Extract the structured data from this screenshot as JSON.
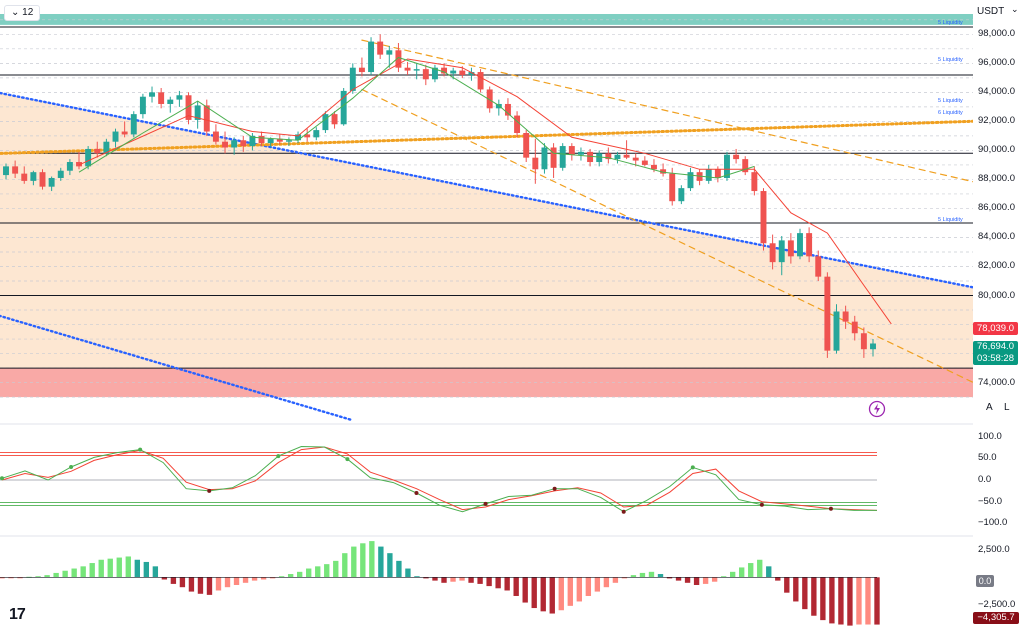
{
  "header": {
    "interval": "12",
    "currency": "USDT"
  },
  "price_axis": {
    "labels": [
      "98,000.0",
      "96,000.0",
      "94,000.0",
      "92,000.0",
      "90,000.0",
      "88,000.0",
      "86,000.0",
      "84,000.0",
      "82,000.0",
      "80,000.0",
      "74,000.0"
    ],
    "tag_red": "78,039.0",
    "tag_green_price": "76,694.0",
    "tag_green_timer": "03:58:28",
    "auto_label": "A",
    "log_label": "L"
  },
  "oscillator_axis": {
    "labels": [
      "100.0",
      "50.0",
      "0.0",
      "−50.0",
      "−100.0"
    ]
  },
  "macd_axis": {
    "labels": [
      "2,500.0",
      "−2,500.0"
    ],
    "zero_tag": "0.0",
    "value_tag": "−4,305.7"
  },
  "liquidity_labels": [
    "5 Liquidity",
    "5 Liquidity",
    "5 Liquidity",
    "6 Liquidity",
    "5 Liquidity"
  ],
  "logo_text": "17",
  "colors": {
    "up": "#26a69a",
    "down": "#ef5350",
    "zone_top": "#7fcfc2",
    "zone_red": "#f9a9a6",
    "zone_peach": "#fde7d2",
    "blue_dotted": "#2962ff",
    "orange_dashed": "#f0a020",
    "ma_red": "#f44336",
    "ma_green": "#4caf50"
  },
  "chart_data": {
    "type": "candlestick",
    "symbol_quote": "USDT",
    "interval": "12",
    "y_range": [
      72800,
      99400
    ],
    "ohlc": [
      [
        88300,
        89100,
        88000,
        88900
      ],
      [
        88900,
        89300,
        88100,
        88400
      ],
      [
        88400,
        88900,
        87700,
        87900
      ],
      [
        87900,
        88600,
        87600,
        88500
      ],
      [
        88500,
        88700,
        87300,
        87500
      ],
      [
        87500,
        88200,
        87200,
        88100
      ],
      [
        88100,
        88800,
        87900,
        88600
      ],
      [
        88600,
        89400,
        88300,
        89200
      ],
      [
        89200,
        89900,
        88700,
        88900
      ],
      [
        88900,
        90300,
        88700,
        90100
      ],
      [
        90100,
        90600,
        89500,
        89800
      ],
      [
        89800,
        90800,
        89600,
        90600
      ],
      [
        90600,
        91500,
        90200,
        91300
      ],
      [
        91300,
        92000,
        90900,
        91100
      ],
      [
        91100,
        92700,
        90900,
        92500
      ],
      [
        92500,
        93900,
        92200,
        93700
      ],
      [
        93700,
        94400,
        93300,
        94000
      ],
      [
        94000,
        94300,
        92900,
        93200
      ],
      [
        93200,
        93700,
        92600,
        93500
      ],
      [
        93500,
        94100,
        93000,
        93800
      ],
      [
        93800,
        94000,
        91800,
        92100
      ],
      [
        92100,
        93400,
        91500,
        93100
      ],
      [
        93100,
        93500,
        91000,
        91300
      ],
      [
        91300,
        91800,
        90400,
        90600
      ],
      [
        90600,
        91300,
        89800,
        90200
      ],
      [
        90200,
        90900,
        89700,
        90700
      ],
      [
        90700,
        91000,
        89900,
        90300
      ],
      [
        90300,
        91200,
        90000,
        91000
      ],
      [
        91000,
        91300,
        90300,
        90500
      ],
      [
        90500,
        90900,
        90200,
        90800
      ],
      [
        90800,
        91100,
        90400,
        90600
      ],
      [
        90600,
        90900,
        90300,
        90700
      ],
      [
        90700,
        91300,
        90500,
        91100
      ],
      [
        91100,
        91500,
        90600,
        90900
      ],
      [
        90900,
        91600,
        90700,
        91400
      ],
      [
        91400,
        92700,
        91200,
        92500
      ],
      [
        92500,
        92700,
        91500,
        91800
      ],
      [
        91800,
        94300,
        91700,
        94100
      ],
      [
        94100,
        96000,
        93900,
        95700
      ],
      [
        95700,
        96400,
        95100,
        95400
      ],
      [
        95400,
        97800,
        95200,
        97500
      ],
      [
        97500,
        98000,
        96300,
        96600
      ],
      [
        96600,
        97200,
        95700,
        96900
      ],
      [
        96900,
        97400,
        95400,
        95700
      ],
      [
        95700,
        96100,
        95200,
        95500
      ],
      [
        95500,
        96000,
        94900,
        95600
      ],
      [
        95600,
        95900,
        94500,
        94900
      ],
      [
        94900,
        95900,
        94700,
        95700
      ],
      [
        95700,
        96000,
        95100,
        95300
      ],
      [
        95300,
        95700,
        94900,
        95500
      ],
      [
        95500,
        95800,
        95000,
        95200
      ],
      [
        95200,
        95700,
        94800,
        95400
      ],
      [
        95400,
        95600,
        94000,
        94200
      ],
      [
        94200,
        94400,
        92600,
        92900
      ],
      [
        92900,
        93500,
        92400,
        93200
      ],
      [
        93200,
        93600,
        92100,
        92400
      ],
      [
        92400,
        92700,
        90900,
        91200
      ],
      [
        91200,
        91400,
        89200,
        89500
      ],
      [
        89500,
        90800,
        87700,
        88700
      ],
      [
        88700,
        90500,
        88400,
        90200
      ],
      [
        90200,
        90500,
        88100,
        88800
      ],
      [
        88800,
        90500,
        88600,
        90300
      ],
      [
        90300,
        90500,
        89300,
        89700
      ],
      [
        89700,
        90200,
        89300,
        89900
      ],
      [
        89900,
        90100,
        88900,
        89200
      ],
      [
        89200,
        90000,
        88900,
        89800
      ],
      [
        89800,
        90200,
        89100,
        89400
      ],
      [
        89400,
        89900,
        89100,
        89700
      ],
      [
        89700,
        90700,
        89400,
        89500
      ],
      [
        89500,
        89800,
        88900,
        89300
      ],
      [
        89300,
        89600,
        88900,
        89000
      ],
      [
        89000,
        89400,
        88500,
        88700
      ],
      [
        88700,
        89100,
        88200,
        88400
      ],
      [
        88400,
        88800,
        86200,
        86500
      ],
      [
        86500,
        87600,
        86300,
        87400
      ],
      [
        87400,
        88800,
        87200,
        88500
      ],
      [
        88500,
        88700,
        87600,
        87900
      ],
      [
        87900,
        89000,
        87700,
        88700
      ],
      [
        88700,
        88900,
        87800,
        88100
      ],
      [
        88100,
        89900,
        87900,
        89700
      ],
      [
        89700,
        90100,
        89100,
        89400
      ],
      [
        89400,
        89600,
        88300,
        88500
      ],
      [
        88500,
        88900,
        86900,
        87200
      ],
      [
        87200,
        87400,
        83100,
        83600
      ],
      [
        83600,
        84200,
        81800,
        82300
      ],
      [
        82300,
        84100,
        81400,
        83800
      ],
      [
        83800,
        84300,
        82200,
        82700
      ],
      [
        82700,
        84600,
        82500,
        84300
      ],
      [
        84300,
        84700,
        82300,
        82700
      ],
      [
        82700,
        83100,
        81000,
        81300
      ],
      [
        81300,
        81600,
        75700,
        76200
      ],
      [
        76200,
        79400,
        76000,
        78900
      ],
      [
        78900,
        79300,
        77700,
        78200
      ],
      [
        78200,
        78600,
        76900,
        77400
      ],
      [
        77400,
        77800,
        75700,
        76300
      ],
      [
        76300,
        77000,
        75800,
        76694
      ]
    ],
    "ma_red": [
      [
        8,
        89000
      ],
      [
        20,
        92400
      ],
      [
        27,
        91300
      ],
      [
        32,
        91000
      ],
      [
        38,
        94200
      ],
      [
        44,
        96300
      ],
      [
        50,
        95700
      ],
      [
        56,
        93700
      ],
      [
        62,
        90900
      ],
      [
        70,
        89800
      ],
      [
        76,
        88700
      ],
      [
        82,
        88700
      ],
      [
        86,
        85700
      ],
      [
        90,
        84300
      ],
      [
        94,
        80700
      ],
      [
        97,
        78039
      ]
    ],
    "ma_green": [
      [
        8,
        88500
      ],
      [
        15,
        91200
      ],
      [
        21,
        93400
      ],
      [
        27,
        90900
      ],
      [
        32,
        90700
      ],
      [
        38,
        93600
      ],
      [
        43,
        96400
      ],
      [
        48,
        95400
      ],
      [
        54,
        93100
      ],
      [
        60,
        89800
      ],
      [
        66,
        89500
      ],
      [
        72,
        88500
      ],
      [
        78,
        88100
      ],
      [
        82,
        88900
      ]
    ],
    "horizontal_levels": [
      98500,
      95200,
      89800,
      85000,
      80000,
      75000
    ],
    "trendlines": [
      {
        "style": "blue-dotted",
        "from": [
          -5,
          94500
        ],
        "to": [
          120,
          78800
        ]
      },
      {
        "style": "blue-dotted",
        "from": [
          -5,
          79400
        ],
        "to": [
          38,
          71400
        ]
      },
      {
        "style": "orange-dotted",
        "from": [
          -5,
          89700
        ],
        "to": [
          120,
          92300
        ]
      },
      {
        "style": "orange-dashed",
        "from": [
          39,
          97600
        ],
        "to": [
          120,
          85800
        ]
      },
      {
        "style": "orange-dashed",
        "from": [
          39,
          94200
        ],
        "to": [
          108,
          73400
        ]
      }
    ],
    "zones": [
      {
        "from": 99400,
        "to": 98650,
        "color": "teal"
      },
      {
        "from": 75000,
        "to": 73000,
        "color": "red"
      }
    ],
    "oscillator": {
      "y_range": [
        -115,
        115
      ],
      "levels": [
        60,
        -55
      ],
      "k": [
        [
          0,
          4
        ],
        [
          4,
          21
        ],
        [
          8,
          0
        ],
        [
          12,
          30
        ],
        [
          16,
          52
        ],
        [
          20,
          63
        ],
        [
          24,
          70
        ],
        [
          28,
          40
        ],
        [
          32,
          -20
        ],
        [
          36,
          -25
        ],
        [
          40,
          -18
        ],
        [
          44,
          10
        ],
        [
          48,
          55
        ],
        [
          52,
          77
        ],
        [
          56,
          76
        ],
        [
          60,
          48
        ],
        [
          64,
          5
        ],
        [
          68,
          -6
        ],
        [
          72,
          -30
        ],
        [
          76,
          -58
        ],
        [
          80,
          -73
        ],
        [
          84,
          -55
        ],
        [
          88,
          -38
        ],
        [
          92,
          -35
        ],
        [
          96,
          -20
        ],
        [
          100,
          -20
        ],
        [
          104,
          -40
        ],
        [
          108,
          -73
        ],
        [
          112,
          -47
        ],
        [
          116,
          -15
        ],
        [
          120,
          29
        ],
        [
          124,
          12
        ],
        [
          128,
          -45
        ],
        [
          132,
          -57
        ],
        [
          136,
          -60
        ],
        [
          140,
          -68
        ],
        [
          144,
          -66
        ],
        [
          148,
          -70
        ],
        [
          152,
          -70
        ]
      ],
      "d": [
        [
          0,
          0
        ],
        [
          4,
          15
        ],
        [
          8,
          6
        ],
        [
          12,
          20
        ],
        [
          16,
          45
        ],
        [
          20,
          58
        ],
        [
          24,
          68
        ],
        [
          28,
          50
        ],
        [
          32,
          -5
        ],
        [
          36,
          -22
        ],
        [
          40,
          -20
        ],
        [
          44,
          -2
        ],
        [
          48,
          40
        ],
        [
          52,
          70
        ],
        [
          56,
          76
        ],
        [
          60,
          60
        ],
        [
          64,
          18
        ],
        [
          68,
          0
        ],
        [
          72,
          -20
        ],
        [
          76,
          -45
        ],
        [
          80,
          -68
        ],
        [
          84,
          -62
        ],
        [
          88,
          -45
        ],
        [
          92,
          -36
        ],
        [
          96,
          -25
        ],
        [
          100,
          -18
        ],
        [
          104,
          -30
        ],
        [
          108,
          -62
        ],
        [
          112,
          -58
        ],
        [
          116,
          -28
        ],
        [
          120,
          15
        ],
        [
          124,
          25
        ],
        [
          128,
          -25
        ],
        [
          132,
          -50
        ],
        [
          136,
          -55
        ],
        [
          140,
          -60
        ],
        [
          144,
          -66
        ],
        [
          148,
          -68
        ],
        [
          152,
          -70
        ]
      ]
    },
    "macd_histogram": {
      "y_range": [
        -4800,
        3400
      ],
      "values": [
        -100,
        -60,
        -20,
        50,
        100,
        200,
        400,
        600,
        800,
        1000,
        1300,
        1600,
        1700,
        1800,
        1900,
        1600,
        1400,
        1000,
        -200,
        -600,
        -900,
        -1300,
        -1500,
        -1600,
        -1200,
        -900,
        -700,
        -500,
        -300,
        -200,
        -100,
        100,
        300,
        500,
        800,
        1000,
        1200,
        1500,
        2200,
        2800,
        3100,
        3300,
        2800,
        2200,
        1500,
        800,
        100,
        -100,
        -300,
        -500,
        -400,
        -300,
        -500,
        -600,
        -800,
        -1000,
        -1200,
        -1700,
        -2300,
        -2800,
        -3100,
        -3300,
        -3000,
        -2600,
        -2200,
        -1700,
        -1300,
        -900,
        -500,
        -100,
        200,
        400,
        500,
        300,
        -100,
        -300,
        -500,
        -700,
        -600,
        -400,
        100,
        500,
        900,
        1300,
        1600,
        1000,
        -300,
        -1400,
        -2200,
        -2900,
        -3500,
        -3900,
        -4200,
        -4300,
        -4400,
        -4300,
        -4300,
        -4305.7
      ]
    }
  }
}
